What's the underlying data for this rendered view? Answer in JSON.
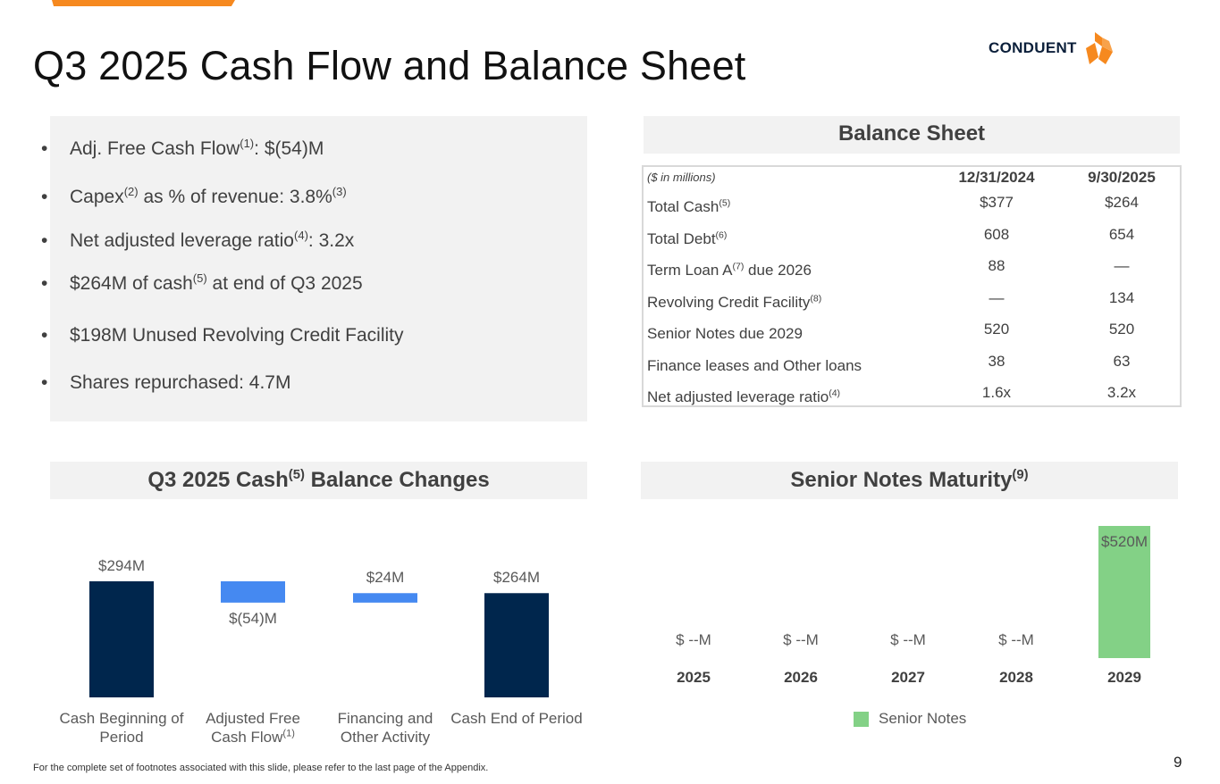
{
  "title": "Q3 2025 Cash Flow and Balance Sheet",
  "logo": {
    "text": "CONDUENT",
    "accent_color": "#f6891f"
  },
  "highlights": [
    {
      "pre": "Adj. Free Cash Flow",
      "sup": "(1)",
      "post": ": $(54)M"
    },
    {
      "pre": "Capex",
      "sup": "(2)",
      "mid": " as % of revenue: 3.8%",
      "sup2": "(3)",
      "post": ""
    },
    {
      "pre": "Net adjusted leverage ratio",
      "sup": "(4)",
      "post": ": 3.2x"
    },
    {
      "pre": "$264M of cash",
      "sup": "(5)",
      "post": " at end of Q3 2025"
    },
    {
      "pre": "$198M Unused Revolving Credit Facility",
      "sup": "",
      "post": ""
    },
    {
      "pre": "Shares repurchased: 4.7M",
      "sup": "",
      "post": ""
    }
  ],
  "balance_sheet": {
    "title": "Balance Sheet",
    "unit_label": "($ in millions)",
    "col1": "12/31/2024",
    "col2": "9/30/2025",
    "rows": [
      {
        "label": "Total Cash",
        "sup": "(5)",
        "post": "",
        "v1": "$377",
        "v2": "$264"
      },
      {
        "label": "Total Debt",
        "sup": "(6)",
        "post": "",
        "v1": "608",
        "v2": "654"
      },
      {
        "label": "Term Loan A",
        "sup": "(7)",
        "post": " due 2026",
        "v1": "88",
        "v2": "—"
      },
      {
        "label": "Revolving Credit Facility",
        "sup": "(8)",
        "post": "",
        "v1": "—",
        "v2": "134"
      },
      {
        "label": "Senior Notes due 2029",
        "sup": "",
        "post": "",
        "v1": "520",
        "v2": "520"
      },
      {
        "label": "Finance leases and Other loans",
        "sup": "",
        "post": "",
        "v1": "38",
        "v2": "63"
      },
      {
        "label": "Net adjusted leverage ratio",
        "sup": "(4)",
        "post": "",
        "v1": "1.6x",
        "v2": "3.2x"
      }
    ]
  },
  "cash_chart": {
    "title_pre": "Q3 2025 Cash",
    "title_sup": "(5)",
    "title_post": " Balance Changes",
    "colors": {
      "total": "#00264d",
      "change": "#4589f1"
    }
  },
  "maturity_chart": {
    "title_pre": "Senior Notes Maturity",
    "title_sup": "(9)",
    "legend": "Senior Notes",
    "color": "#83d186"
  },
  "chart_data": [
    {
      "type": "bar",
      "subtype": "waterfall",
      "categories": [
        "Cash Beginning of  Period",
        "Adjusted Free Cash Flow",
        "Financing and Other Activity",
        "Cash End of Period"
      ],
      "category_sups": [
        "",
        "(1)",
        "",
        ""
      ],
      "values": [
        294,
        -54,
        24,
        264
      ],
      "kinds": [
        "total",
        "change",
        "change",
        "total"
      ],
      "data_labels": [
        "$294M",
        "$(54)M",
        "$24M",
        "$264M"
      ]
    },
    {
      "type": "bar",
      "categories": [
        "2025",
        "2026",
        "2027",
        "2028",
        "2029"
      ],
      "series": [
        {
          "name": "Senior Notes",
          "values": [
            0,
            0,
            0,
            0,
            520
          ]
        }
      ],
      "data_labels": [
        "$ --M",
        "$ --M",
        "$ --M",
        "$ --M",
        "$520M"
      ]
    }
  ],
  "footnote": "For the complete set of footnotes associated with this slide, please refer to the last page of the Appendix.",
  "page_number": "9"
}
